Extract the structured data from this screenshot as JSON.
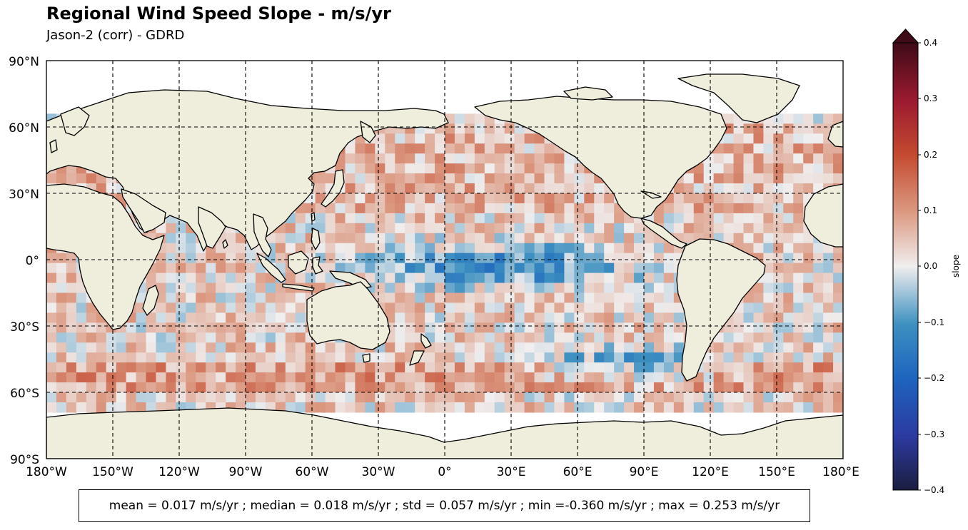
{
  "title": "Regional Wind Speed Slope - m/s/yr",
  "subtitle": "Jason-2 (corr) - GDRD",
  "stats_text": "mean = 0.017 m/s/yr ; median = 0.018 m/s/yr ; std = 0.057 m/s/yr ; min =-0.360 m/s/yr ; max = 0.253 m/s/yr",
  "colors": {
    "land": "#efeddb",
    "ocean_nodata": "#ffffff",
    "coast": "#000000",
    "grid": "#000000"
  },
  "chart_data": {
    "type": "heatmap",
    "projection": "PlateCarree, central longitude 180",
    "title": "Regional Wind Speed Slope - m/s/yr",
    "subtitle": "Jason-2 (corr) - GDRD",
    "x_ticks": [
      "180°W",
      "150°W",
      "120°W",
      "90°W",
      "60°W",
      "30°W",
      "0°",
      "30°E",
      "60°E",
      "90°E",
      "120°E",
      "150°E",
      "180°E"
    ],
    "y_ticks": [
      "90°N",
      "60°N",
      "30°N",
      "0°",
      "30°S",
      "60°S",
      "90°S"
    ],
    "xlim": [
      -180,
      180
    ],
    "ylim": [
      -90,
      90
    ],
    "grid": true,
    "grid_style": "dashed",
    "colorbar": {
      "label": "slope",
      "ticks": [
        "0.4",
        "0.3",
        "0.2",
        "0.1",
        "0.0",
        "−0.1",
        "−0.2",
        "−0.3",
        "−0.4"
      ],
      "vmin": -0.4,
      "vmax": 0.4,
      "extend": "max",
      "colormap": "balance (blue–white–red)"
    },
    "data_coverage": "ocean between about 66°S and 66°N",
    "stats": {
      "mean": 0.017,
      "median": 0.018,
      "std": 0.057,
      "min": -0.36,
      "max": 0.253,
      "unit": "m/s/yr"
    }
  }
}
